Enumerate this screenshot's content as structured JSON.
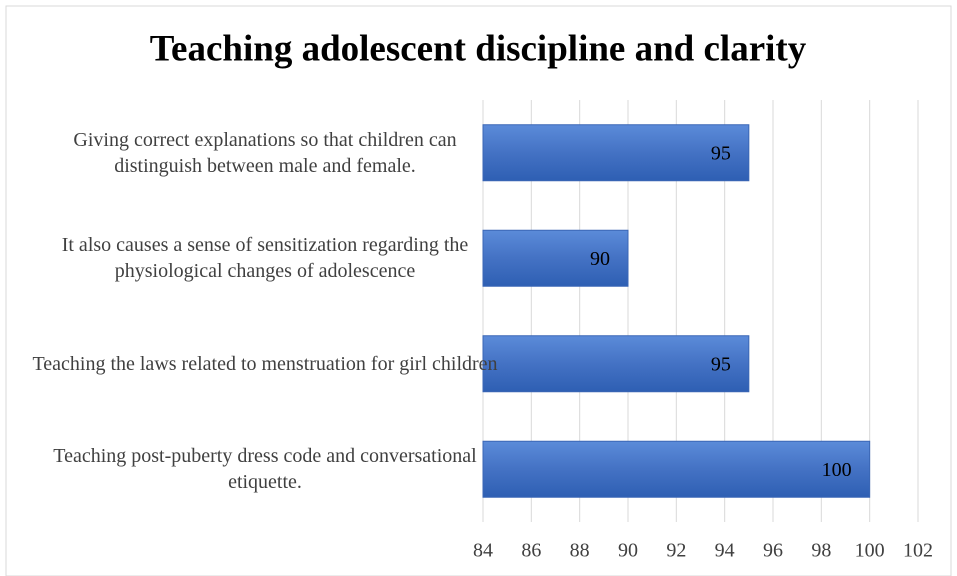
{
  "chart_data": {
    "type": "hbar",
    "title": "Teaching adolescent discipline and clarity",
    "categories": [
      "Giving correct explanations so that children can distinguish between male and female.",
      "It also causes a sense of sensitization regarding the physiological changes of adolescence",
      "Teaching the laws related to menstruation for girl children",
      "Teaching post-puberty dress code and conversational etiquette."
    ],
    "values": [
      95,
      90,
      95,
      100
    ],
    "color": "#4472c4",
    "xlim": [
      84,
      102
    ],
    "xticks": [
      84,
      86,
      88,
      90,
      92,
      94,
      96,
      98,
      100,
      102
    ],
    "grid": true
  }
}
